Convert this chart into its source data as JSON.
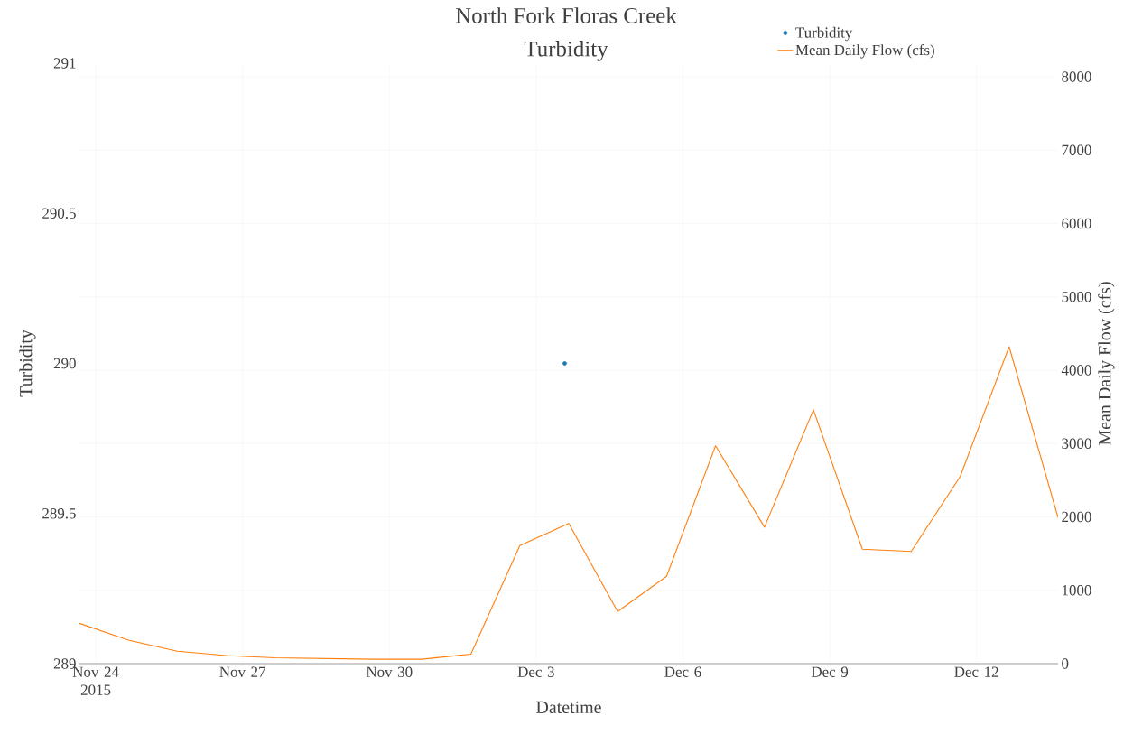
{
  "chart_data": {
    "type": "line",
    "title": "North Fork Floras Creek Turbidity",
    "xlabel": "Datetime",
    "ylabel": "Turbidity",
    "y2label": "Mean Daily Flow (cfs)",
    "xlim": [
      "2015-11-23T16:00",
      "2015-12-13T16:00"
    ],
    "xticks": [
      {
        "value": "2015-11-24",
        "label": "Nov 24 2015"
      },
      {
        "value": "2015-11-27",
        "label": "Nov 27"
      },
      {
        "value": "2015-11-30",
        "label": "Nov 30"
      },
      {
        "value": "2015-12-03",
        "label": "Dec 3"
      },
      {
        "value": "2015-12-06",
        "label": "Dec 6"
      },
      {
        "value": "2015-12-09",
        "label": "Dec 9"
      },
      {
        "value": "2015-12-12",
        "label": "Dec 12"
      }
    ],
    "ylim": [
      289,
      291
    ],
    "yticks": [
      289,
      289.5,
      290,
      290.5,
      291
    ],
    "y2lim": [
      0,
      8185
    ],
    "y2ticks": [
      0,
      1000,
      2000,
      3000,
      4000,
      5000,
      6000,
      7000,
      8000
    ],
    "grid": true,
    "legend": "top right",
    "series": [
      {
        "name": "Turbidity",
        "type": "scatter",
        "color": "#1f77b4",
        "x": [
          "2015-12-03T14:00"
        ],
        "values": [
          290
        ]
      },
      {
        "name": "Mean Daily Flow (cfs)",
        "axis": "y2",
        "color": "#ff7f0e",
        "x": [
          "2015-11-23T16:00",
          "2015-11-24T16:00",
          "2015-11-25T16:00",
          "2015-11-26T16:00",
          "2015-11-27T16:00",
          "2015-11-28T16:00",
          "2015-11-29T16:00",
          "2015-11-30T16:00",
          "2015-12-01T16:00",
          "2015-12-02T16:00",
          "2015-12-03T16:00",
          "2015-12-04T16:00",
          "2015-12-05T16:00",
          "2015-12-06T16:00",
          "2015-12-07T16:00",
          "2015-12-08T16:00",
          "2015-12-09T16:00",
          "2015-12-10T16:00",
          "2015-12-11T16:00",
          "2015-12-12T16:00",
          "2015-12-13T16:00"
        ],
        "values": [
          550,
          320,
          170,
          110,
          80,
          70,
          60,
          60,
          130,
          1610,
          1910,
          710,
          1190,
          2970,
          1860,
          3460,
          1560,
          1530,
          2550,
          4320,
          1990
        ]
      }
    ]
  }
}
